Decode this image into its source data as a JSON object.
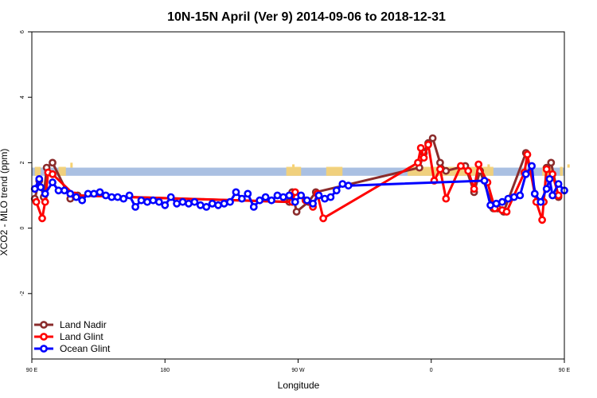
{
  "chart_data": {
    "type": "line",
    "title": "10N-15N April (Ver 9)   2014-09-06 to 2018-12-31",
    "xlabel": "Longitude",
    "ylabel": "XCO2 - MLO trend (ppm)",
    "xlim": [
      90,
      450
    ],
    "ylim": [
      -4,
      6
    ],
    "x_ticks": [
      {
        "value": 90,
        "label": "90 E"
      },
      {
        "value": 180,
        "label": "180"
      },
      {
        "value": 270,
        "label": "90 W"
      },
      {
        "value": 360,
        "label": "0"
      },
      {
        "value": 450,
        "label": "90 E"
      },
      {
        "value": 540,
        "label": "180"
      }
    ],
    "y_ticks": [
      {
        "value": -2,
        "label": "-2"
      },
      {
        "value": 0,
        "label": "0"
      },
      {
        "value": 2,
        "label": "2"
      },
      {
        "value": 4,
        "label": "4"
      },
      {
        "value": 6,
        "label": "6"
      }
    ],
    "band": {
      "y_low": 1.6,
      "y_high": 1.85,
      "color": "#aac0e2"
    },
    "land_patches_color": "#f7d272",
    "legend": {
      "position": "bottom-left"
    },
    "series": [
      {
        "name": "Land Nadir",
        "color": "#8b2c2c",
        "points": [
          [
            92,
            0.9
          ],
          [
            95,
            1.45
          ],
          [
            98,
            0.95
          ],
          [
            100,
            1.85
          ],
          [
            104,
            2.0
          ],
          [
            116,
            0.9
          ],
          [
            121,
            1.0
          ],
          [
            264,
            0.8
          ],
          [
            266,
            1.1
          ],
          [
            269,
            0.5
          ],
          [
            277,
            0.8
          ],
          [
            282,
            1.1
          ],
          [
            352,
            1.85
          ],
          [
            355,
            2.3
          ],
          [
            358,
            2.6
          ],
          [
            361,
            2.75
          ],
          [
            366,
            2.0
          ],
          [
            370,
            1.75
          ],
          [
            383,
            1.9
          ],
          [
            389,
            1.1
          ],
          [
            393,
            1.75
          ],
          [
            402,
            0.6
          ],
          [
            405,
            0.6
          ],
          [
            409,
            0.5
          ],
          [
            424,
            2.3
          ],
          [
            432,
            0.8
          ],
          [
            436,
            0.8
          ],
          [
            438,
            1.85
          ],
          [
            441,
            2.0
          ],
          [
            446,
            0.95
          ]
        ]
      },
      {
        "name": "Land Glint",
        "color": "#ff0000",
        "points": [
          [
            93,
            0.8
          ],
          [
            97,
            0.3
          ],
          [
            99,
            0.8
          ],
          [
            101,
            1.7
          ],
          [
            104,
            1.65
          ],
          [
            119,
            1.0
          ],
          [
            266,
            0.8
          ],
          [
            268,
            1.1
          ],
          [
            275,
            0.85
          ],
          [
            280,
            0.65
          ],
          [
            283,
            1.05
          ],
          [
            287,
            0.3
          ],
          [
            351,
            2.0
          ],
          [
            353,
            2.45
          ],
          [
            355,
            2.15
          ],
          [
            358,
            2.55
          ],
          [
            362,
            1.45
          ],
          [
            366,
            1.8
          ],
          [
            370,
            0.9
          ],
          [
            380,
            1.9
          ],
          [
            385,
            1.75
          ],
          [
            389,
            1.2
          ],
          [
            392,
            1.95
          ],
          [
            398,
            1.4
          ],
          [
            403,
            0.6
          ],
          [
            408,
            0.55
          ],
          [
            411,
            0.5
          ],
          [
            423,
            1.7
          ],
          [
            425,
            2.25
          ],
          [
            431,
            0.8
          ],
          [
            435,
            0.25
          ],
          [
            436,
            0.8
          ],
          [
            438,
            1.8
          ],
          [
            442,
            1.65
          ],
          [
            446,
            1.0
          ]
        ]
      },
      {
        "name": "Ocean Glint",
        "color": "#0000ff",
        "points": [
          [
            92,
            1.2
          ],
          [
            95,
            1.5
          ],
          [
            96,
            1.25
          ],
          [
            99,
            1.05
          ],
          [
            104,
            1.4
          ],
          [
            108,
            1.15
          ],
          [
            112,
            1.15
          ],
          [
            116,
            1.05
          ],
          [
            120,
            0.95
          ],
          [
            124,
            0.85
          ],
          [
            128,
            1.05
          ],
          [
            132,
            1.05
          ],
          [
            136,
            1.1
          ],
          [
            140,
            1.0
          ],
          [
            144,
            0.95
          ],
          [
            148,
            0.95
          ],
          [
            152,
            0.9
          ],
          [
            156,
            1.0
          ],
          [
            160,
            0.65
          ],
          [
            164,
            0.85
          ],
          [
            168,
            0.8
          ],
          [
            172,
            0.85
          ],
          [
            176,
            0.8
          ],
          [
            180,
            0.7
          ],
          [
            184,
            0.95
          ],
          [
            188,
            0.75
          ],
          [
            192,
            0.8
          ],
          [
            196,
            0.75
          ],
          [
            200,
            0.8
          ],
          [
            204,
            0.7
          ],
          [
            208,
            0.65
          ],
          [
            212,
            0.75
          ],
          [
            216,
            0.7
          ],
          [
            220,
            0.75
          ],
          [
            224,
            0.8
          ],
          [
            228,
            1.1
          ],
          [
            232,
            0.9
          ],
          [
            236,
            1.05
          ],
          [
            240,
            0.65
          ],
          [
            244,
            0.85
          ],
          [
            248,
            0.95
          ],
          [
            252,
            0.85
          ],
          [
            256,
            1.0
          ],
          [
            260,
            0.95
          ],
          [
            264,
            1.0
          ],
          [
            268,
            0.8
          ],
          [
            272,
            1.0
          ],
          [
            276,
            0.85
          ],
          [
            280,
            0.75
          ],
          [
            284,
            1.0
          ],
          [
            288,
            0.9
          ],
          [
            292,
            0.95
          ],
          [
            296,
            1.15
          ],
          [
            300,
            1.35
          ],
          [
            304,
            1.3
          ],
          [
            396,
            1.45
          ],
          [
            400,
            0.7
          ],
          [
            404,
            0.75
          ],
          [
            408,
            0.8
          ],
          [
            412,
            0.9
          ],
          [
            416,
            0.95
          ],
          [
            420,
            1.0
          ],
          [
            424,
            1.65
          ],
          [
            428,
            1.9
          ],
          [
            430,
            1.05
          ],
          [
            434,
            0.8
          ],
          [
            438,
            1.2
          ],
          [
            440,
            1.5
          ],
          [
            442,
            1.0
          ],
          [
            446,
            1.35
          ],
          [
            450,
            1.15
          ]
        ]
      }
    ]
  }
}
